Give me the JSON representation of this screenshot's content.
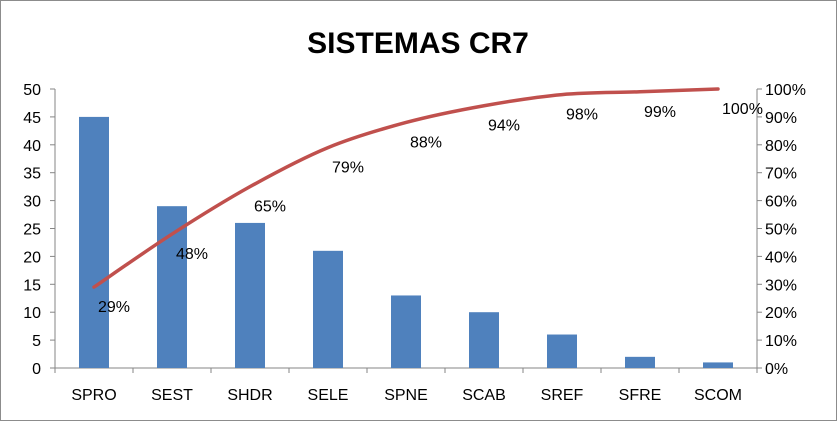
{
  "chart_data": {
    "type": "bar",
    "title": "SISTEMAS CR7",
    "categories": [
      "SPRO",
      "SEST",
      "SHDR",
      "SELE",
      "SPNE",
      "SCAB",
      "SREF",
      "SFRE",
      "SCOM"
    ],
    "series": [
      {
        "type": "bar",
        "axis": "left",
        "color": "#4f81bd",
        "values": [
          45,
          29,
          26,
          21,
          13,
          10,
          6,
          2,
          1
        ]
      },
      {
        "type": "line",
        "axis": "right",
        "color": "#c0504d",
        "values": [
          29,
          48,
          65,
          79,
          88,
          94,
          98,
          99,
          100
        ],
        "labels": [
          "29%",
          "48%",
          "65%",
          "79%",
          "88%",
          "94%",
          "98%",
          "99%",
          "100%"
        ]
      }
    ],
    "y_left": {
      "min": 0,
      "max": 50,
      "step": 5,
      "ticks": [
        "0",
        "5",
        "10",
        "15",
        "20",
        "25",
        "30",
        "35",
        "40",
        "45",
        "50"
      ]
    },
    "y_right": {
      "min": 0,
      "max": 100,
      "step": 10,
      "ticks": [
        "0%",
        "10%",
        "20%",
        "30%",
        "40%",
        "50%",
        "60%",
        "70%",
        "80%",
        "90%",
        "100%"
      ]
    },
    "grid": false,
    "legend": "none"
  }
}
